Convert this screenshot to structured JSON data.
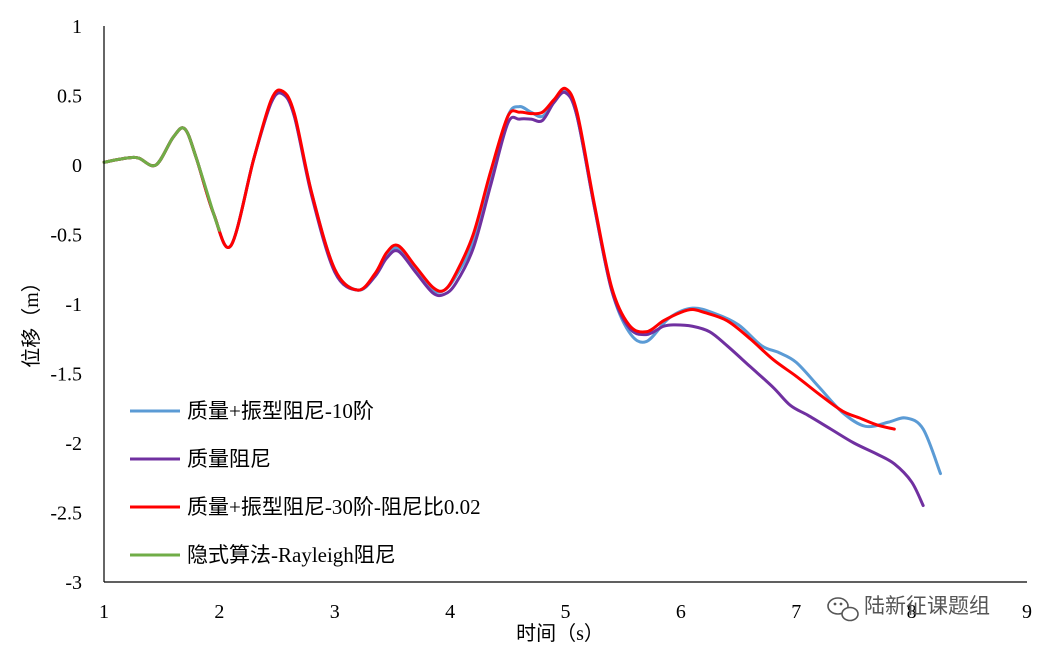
{
  "chart_data": {
    "type": "line",
    "xlabel": "时间（s）",
    "ylabel": "位移（m）",
    "xlim": [
      1,
      9
    ],
    "ylim": [
      -3,
      1
    ],
    "xticks": [
      "1",
      "2",
      "3",
      "4",
      "5",
      "6",
      "7",
      "8",
      "9"
    ],
    "yticks": [
      "1",
      "0.5",
      "0",
      "-0.5",
      "-1",
      "-1.5",
      "-2",
      "-2.5",
      "-3"
    ],
    "grid": false,
    "legend_position": "bottom-left",
    "series": [
      {
        "name": "质量+振型阻尼-10阶",
        "color": "#5B9BD5",
        "x": [
          1.0,
          1.2,
          1.3,
          1.45,
          1.6,
          1.7,
          1.8,
          1.95,
          2.1,
          2.3,
          2.45,
          2.55,
          2.65,
          2.8,
          3.0,
          3.2,
          3.35,
          3.45,
          3.55,
          3.7,
          3.85,
          3.95,
          4.05,
          4.2,
          4.35,
          4.5,
          4.6,
          4.7,
          4.8,
          4.9,
          5.0,
          5.1,
          5.25,
          5.4,
          5.55,
          5.7,
          5.9,
          6.1,
          6.3,
          6.5,
          6.7,
          6.85,
          7.0,
          7.2,
          7.4,
          7.6,
          7.8,
          7.95,
          8.1,
          8.25
        ],
        "values": [
          0.02,
          0.05,
          0.05,
          0.0,
          0.2,
          0.26,
          0.05,
          -0.35,
          -0.58,
          0.05,
          0.45,
          0.52,
          0.35,
          -0.2,
          -0.75,
          -0.9,
          -0.8,
          -0.65,
          -0.6,
          -0.75,
          -0.9,
          -0.9,
          -0.8,
          -0.55,
          -0.1,
          0.35,
          0.42,
          0.38,
          0.35,
          0.45,
          0.53,
          0.35,
          -0.3,
          -0.9,
          -1.2,
          -1.27,
          -1.1,
          -1.03,
          -1.07,
          -1.15,
          -1.3,
          -1.35,
          -1.42,
          -1.6,
          -1.78,
          -1.88,
          -1.85,
          -1.82,
          -1.9,
          -2.22
        ]
      },
      {
        "name": "质量阻尼",
        "color": "#7030A0",
        "x": [
          1.0,
          1.2,
          1.3,
          1.45,
          1.6,
          1.7,
          1.8,
          1.95,
          2.1,
          2.3,
          2.45,
          2.55,
          2.65,
          2.8,
          3.0,
          3.2,
          3.35,
          3.45,
          3.55,
          3.7,
          3.85,
          3.95,
          4.05,
          4.2,
          4.35,
          4.5,
          4.6,
          4.7,
          4.8,
          4.9,
          5.0,
          5.1,
          5.25,
          5.4,
          5.55,
          5.7,
          5.85,
          5.95,
          6.1,
          6.25,
          6.4,
          6.6,
          6.8,
          6.95,
          7.1,
          7.3,
          7.5,
          7.7,
          7.85,
          8.0,
          8.1
        ],
        "values": [
          0.02,
          0.05,
          0.05,
          0.0,
          0.2,
          0.26,
          0.05,
          -0.35,
          -0.58,
          0.05,
          0.45,
          0.51,
          0.35,
          -0.22,
          -0.77,
          -0.9,
          -0.8,
          -0.67,
          -0.62,
          -0.77,
          -0.92,
          -0.93,
          -0.85,
          -0.6,
          -0.15,
          0.3,
          0.33,
          0.33,
          0.32,
          0.45,
          0.52,
          0.35,
          -0.3,
          -0.9,
          -1.17,
          -1.22,
          -1.16,
          -1.15,
          -1.16,
          -1.2,
          -1.3,
          -1.45,
          -1.6,
          -1.73,
          -1.8,
          -1.9,
          -2.0,
          -2.08,
          -2.15,
          -2.28,
          -2.45
        ]
      },
      {
        "name": "质量+振型阻尼-30阶-阻尼比0.02",
        "color": "#FF0000",
        "x": [
          1.0,
          1.2,
          1.3,
          1.45,
          1.6,
          1.7,
          1.8,
          1.95,
          2.1,
          2.3,
          2.45,
          2.55,
          2.65,
          2.8,
          3.0,
          3.2,
          3.35,
          3.45,
          3.55,
          3.7,
          3.85,
          3.95,
          4.05,
          4.2,
          4.35,
          4.5,
          4.6,
          4.7,
          4.8,
          4.9,
          5.0,
          5.1,
          5.25,
          5.4,
          5.55,
          5.7,
          5.85,
          6.0,
          6.1,
          6.2,
          6.4,
          6.6,
          6.8,
          7.0,
          7.2,
          7.4,
          7.55,
          7.7,
          7.85
        ],
        "values": [
          0.02,
          0.05,
          0.05,
          0.0,
          0.2,
          0.26,
          0.05,
          -0.35,
          -0.58,
          0.05,
          0.47,
          0.53,
          0.37,
          -0.2,
          -0.75,
          -0.9,
          -0.78,
          -0.63,
          -0.58,
          -0.73,
          -0.88,
          -0.9,
          -0.78,
          -0.5,
          -0.05,
          0.35,
          0.38,
          0.37,
          0.38,
          0.47,
          0.55,
          0.38,
          -0.28,
          -0.88,
          -1.15,
          -1.2,
          -1.12,
          -1.06,
          -1.04,
          -1.06,
          -1.12,
          -1.25,
          -1.4,
          -1.52,
          -1.65,
          -1.77,
          -1.82,
          -1.87,
          -1.9
        ]
      },
      {
        "name": "隐式算法-Rayleigh阻尼",
        "color": "#70AD47",
        "x": [
          1.0,
          1.2,
          1.3,
          1.45,
          1.6,
          1.7,
          1.8,
          1.95,
          2.0
        ],
        "values": [
          0.02,
          0.05,
          0.05,
          0.0,
          0.2,
          0.26,
          0.05,
          -0.35,
          -0.47
        ]
      }
    ],
    "watermark": "陆新征课题组"
  }
}
